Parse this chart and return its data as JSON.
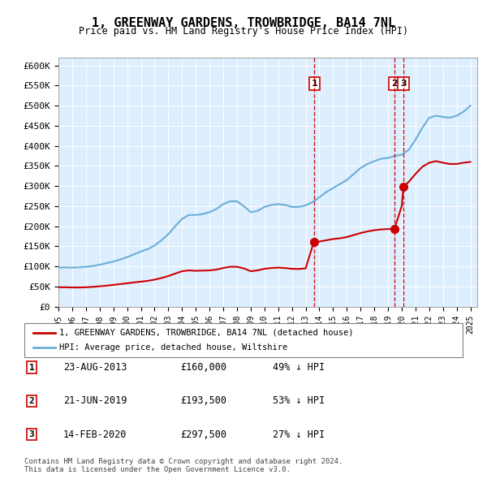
{
  "title": "1, GREENWAY GARDENS, TROWBRIDGE, BA14 7NL",
  "subtitle": "Price paid vs. HM Land Registry's House Price Index (HPI)",
  "ylabel_ticks": [
    "£0",
    "£50K",
    "£100K",
    "£150K",
    "£200K",
    "£250K",
    "£300K",
    "£350K",
    "£400K",
    "£450K",
    "£500K",
    "£550K",
    "£600K"
  ],
  "ytick_values": [
    0,
    50000,
    100000,
    150000,
    200000,
    250000,
    300000,
    350000,
    400000,
    450000,
    500000,
    550000,
    600000
  ],
  "xlim": [
    1995,
    2025.5
  ],
  "ylim": [
    0,
    620000
  ],
  "hpi_color": "#6baed6",
  "price_color": "#cc0000",
  "sale_marker_color": "#cc0000",
  "vline_color": "#cc0000",
  "background_color": "#ddeeff",
  "plot_bg": "#ddeeff",
  "sales": [
    {
      "date_num": 2013.64,
      "price": 160000,
      "label": "1"
    },
    {
      "date_num": 2019.47,
      "price": 193500,
      "label": "2"
    },
    {
      "date_num": 2020.12,
      "price": 297500,
      "label": "3"
    }
  ],
  "legend_house_label": "1, GREENWAY GARDENS, TROWBRIDGE, BA14 7NL (detached house)",
  "legend_hpi_label": "HPI: Average price, detached house, Wiltshire",
  "table_rows": [
    {
      "num": "1",
      "date": "23-AUG-2013",
      "price": "£160,000",
      "pct": "49% ↓ HPI"
    },
    {
      "num": "2",
      "date": "21-JUN-2019",
      "price": "£193,500",
      "pct": "53% ↓ HPI"
    },
    {
      "num": "3",
      "date": "14-FEB-2020",
      "price": "£297,500",
      "pct": "27% ↓ HPI"
    }
  ],
  "footnote": "Contains HM Land Registry data © Crown copyright and database right 2024.\nThis data is licensed under the Open Government Licence v3.0.",
  "xticks": [
    1995,
    1996,
    1997,
    1998,
    1999,
    2000,
    2001,
    2002,
    2003,
    2004,
    2005,
    2006,
    2007,
    2008,
    2009,
    2010,
    2011,
    2012,
    2013,
    2014,
    2015,
    2016,
    2017,
    2018,
    2019,
    2020,
    2021,
    2022,
    2023,
    2024,
    2025
  ]
}
